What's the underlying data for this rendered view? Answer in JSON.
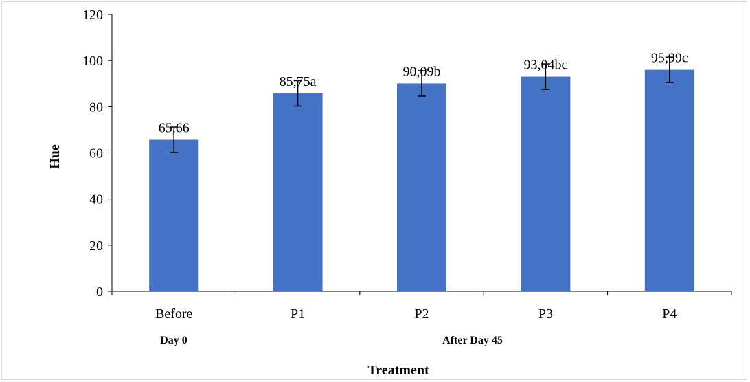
{
  "chart_data": {
    "type": "bar",
    "categories": [
      "Before",
      "P1",
      "P2",
      "P3",
      "P4"
    ],
    "values": [
      65.66,
      85.75,
      90.09,
      93.04,
      95.99
    ],
    "error": [
      5.5,
      5.5,
      5.5,
      5.5,
      5.5
    ],
    "data_labels": [
      "65,66",
      "85,75a",
      "90,09b",
      "93,04bc",
      "95,99c"
    ],
    "group_labels": [
      "Day 0",
      "After Day 45"
    ],
    "xlabel": "Treatment",
    "ylabel": "Hue",
    "ylim": [
      0,
      120
    ],
    "yticks": [
      0,
      20,
      40,
      60,
      80,
      100,
      120
    ],
    "grid": false,
    "legend": "none",
    "bar_color": "#4472c4"
  }
}
